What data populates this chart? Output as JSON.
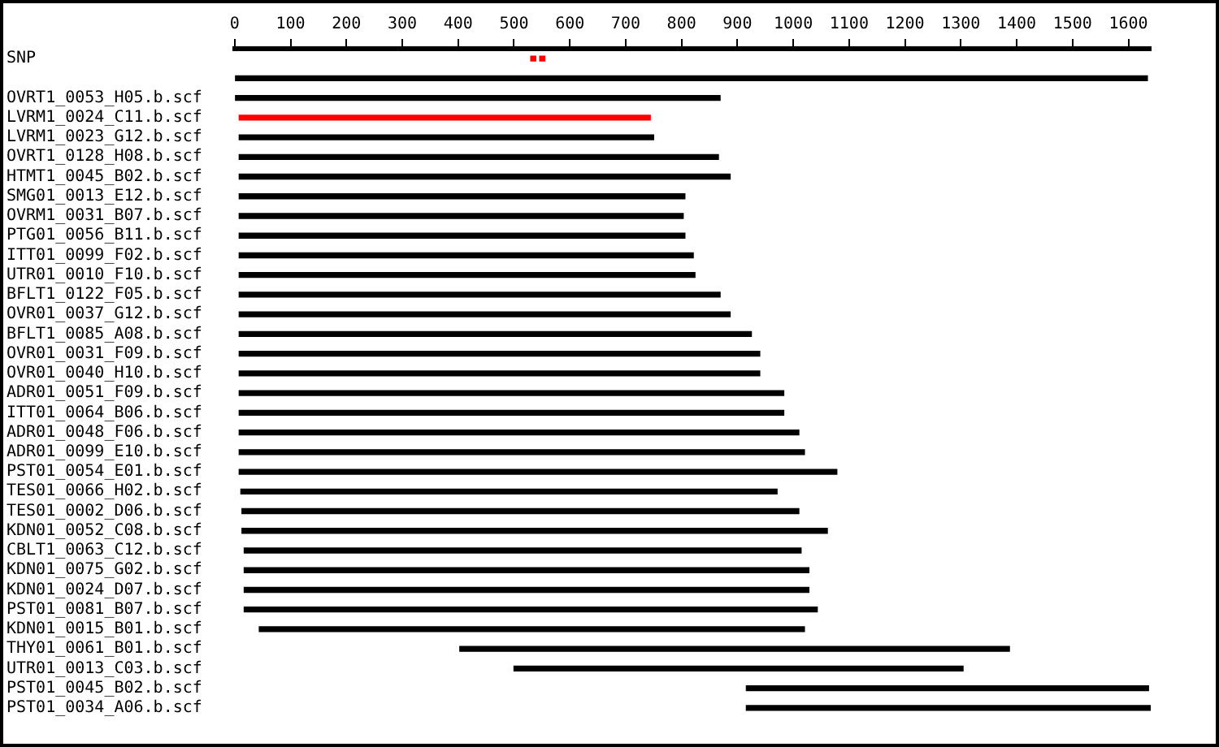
{
  "chart_data": {
    "type": "bar",
    "orientation": "horizontal",
    "grid": false,
    "legend": false,
    "categories": [
      "SNP",
      null,
      "OVRT1_0053_H05.b.scf",
      "LVRM1_0024_C11.b.scf",
      "LVRM1_0023_G12.b.scf",
      "OVRT1_0128_H08.b.scf",
      "HTMT1_0045_B02.b.scf",
      "SMG01_0013_E12.b.scf",
      "OVRM1_0031_B07.b.scf",
      "PTG01_0056_B11.b.scf",
      "ITT01_0099_F02.b.scf",
      "UTR01_0010_F10.b.scf",
      "BFLT1_0122_F05.b.scf",
      "OVR01_0037_G12.b.scf",
      "BFLT1_0085_A08.b.scf",
      "OVR01_0031_F09.b.scf",
      "OVR01_0040_H10.b.scf",
      "ADR01_0051_F09.b.scf",
      "ITT01_0064_B06.b.scf",
      "ADR01_0048_F06.b.scf",
      "ADR01_0099_E10.b.scf",
      "PST01_0054_E01.b.scf",
      "TES01_0066_H02.b.scf",
      "TES01_0002_D06.b.scf",
      "KDN01_0052_C08.b.scf",
      "CBLT1_0063_C12.b.scf",
      "KDN01_0075_G02.b.scf",
      "KDN01_0024_D07.b.scf",
      "PST01_0081_B07.b.scf",
      "KDN01_0015_B01.b.scf",
      "THY01_0061_B01.b.scf",
      "UTR01_0013_C03.b.scf",
      "PST01_0045_B02.b.scf",
      "PST01_0034_A06.b.scf"
    ],
    "xlim": [
      0,
      1640
    ],
    "xticks": [
      0,
      100,
      200,
      300,
      400,
      500,
      600,
      700,
      800,
      900,
      1000,
      1100,
      1200,
      1300,
      1400,
      1500,
      1600
    ],
    "series": [
      {
        "colors": [
          "#ff0000",
          "#000000",
          "#000000",
          "#ff0000",
          "#000000",
          "#000000",
          "#000000",
          "#000000",
          "#000000",
          "#000000",
          "#000000",
          "#000000",
          "#000000",
          "#000000",
          "#000000",
          "#000000",
          "#000000",
          "#000000",
          "#000000",
          "#000000",
          "#000000",
          "#000000",
          "#000000",
          "#000000",
          "#000000",
          "#000000",
          "#000000",
          "#000000",
          "#000000",
          "#000000",
          "#000000",
          "#000000",
          "#000000",
          "#000000"
        ],
        "base": [
          530,
          0,
          0,
          8,
          8,
          8,
          8,
          8,
          8,
          8,
          8,
          8,
          8,
          8,
          8,
          8,
          8,
          8,
          8,
          8,
          8,
          8,
          11,
          13,
          13,
          17,
          17,
          17,
          17,
          44,
          403,
          500,
          916,
          916
        ],
        "values": [
          9,
          1634,
          869,
          736,
          742,
          858,
          879,
          798,
          795,
          798,
          813,
          816,
          861,
          879,
          917,
          932,
          932,
          975,
          975,
          1002,
          1012,
          1070,
          960,
          997,
          1048,
          997,
          1011,
          1011,
          1026,
          976,
          984,
          804,
          720,
          724
        ]
      },
      {
        "color": "#ff0000",
        "base": [
          546,
          null,
          null,
          null,
          null,
          null,
          null,
          null,
          null,
          null,
          null,
          null,
          null,
          null,
          null,
          null,
          null,
          null,
          null,
          null,
          null,
          null,
          null,
          null,
          null,
          null,
          null,
          null,
          null,
          null,
          null,
          null,
          null,
          null
        ],
        "values": [
          9,
          null,
          null,
          null,
          null,
          null,
          null,
          null,
          null,
          null,
          null,
          null,
          null,
          null,
          null,
          null,
          null,
          null,
          null,
          null,
          null,
          null,
          null,
          null,
          null,
          null,
          null,
          null,
          null,
          null,
          null,
          null,
          null,
          null
        ]
      }
    ]
  }
}
